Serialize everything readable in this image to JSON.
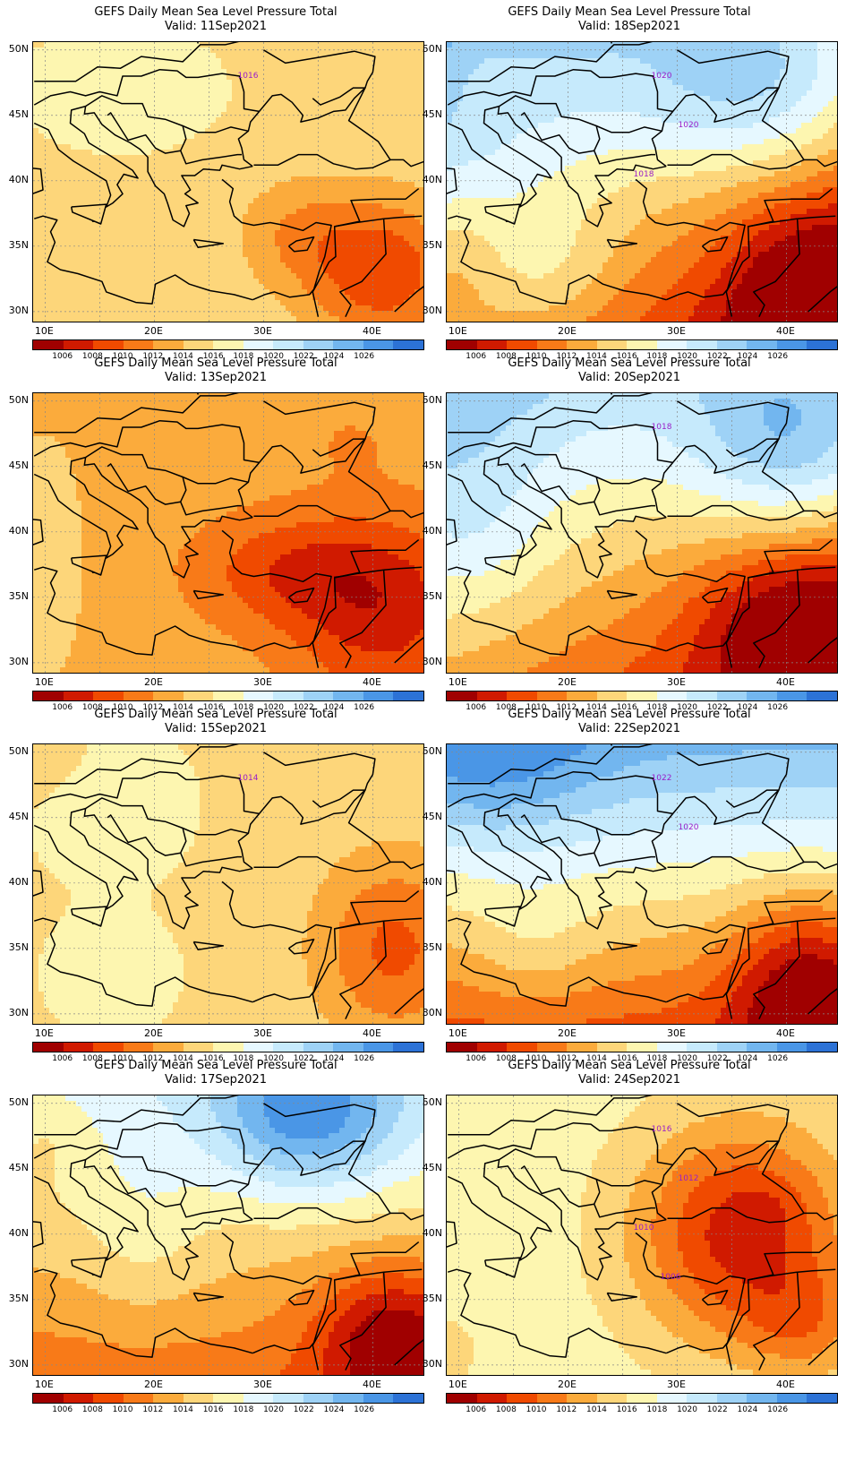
{
  "figure": {
    "title": "GEFS Daily Mean Sea Level Pressure Total",
    "panels": [
      {
        "valid": "Valid: 11Sep2021",
        "contour_labels": [
          "1016"
        ]
      },
      {
        "valid": "Valid: 18Sep2021",
        "contour_labels": [
          "1020",
          "1020",
          "1018"
        ]
      },
      {
        "valid": "Valid: 13Sep2021",
        "contour_labels": []
      },
      {
        "valid": "Valid: 20Sep2021",
        "contour_labels": [
          "1018"
        ]
      },
      {
        "valid": "Valid: 15Sep2021",
        "contour_labels": [
          "1014"
        ]
      },
      {
        "valid": "Valid: 22Sep2021",
        "contour_labels": [
          "1022",
          "1020"
        ]
      },
      {
        "valid": "Valid: 17Sep2021",
        "contour_labels": []
      },
      {
        "valid": "Valid: 24Sep2021",
        "contour_labels": [
          "1016",
          "1012",
          "1010",
          "1006"
        ]
      }
    ],
    "lat_labels": [
      "50N",
      "45N",
      "40N",
      "35N",
      "30N"
    ],
    "lon_labels": [
      "10E",
      "20E",
      "30E",
      "40E"
    ],
    "colorbar": {
      "levels": [
        "1006",
        "1008",
        "1010",
        "1012",
        "1014",
        "1016",
        "1018",
        "1020",
        "1022",
        "1024",
        "1026"
      ],
      "colors": [
        "#a00000",
        "#d01a00",
        "#f04a00",
        "#f87a18",
        "#fbab3c",
        "#fdd67a",
        "#fdf6b0",
        "#e6f8ff",
        "#c6eafc",
        "#9ed2f6",
        "#72b6ef",
        "#4a96e6",
        "#2c72d6"
      ]
    },
    "contour_color": "#9a1ec8",
    "border_color": "#000000"
  }
}
